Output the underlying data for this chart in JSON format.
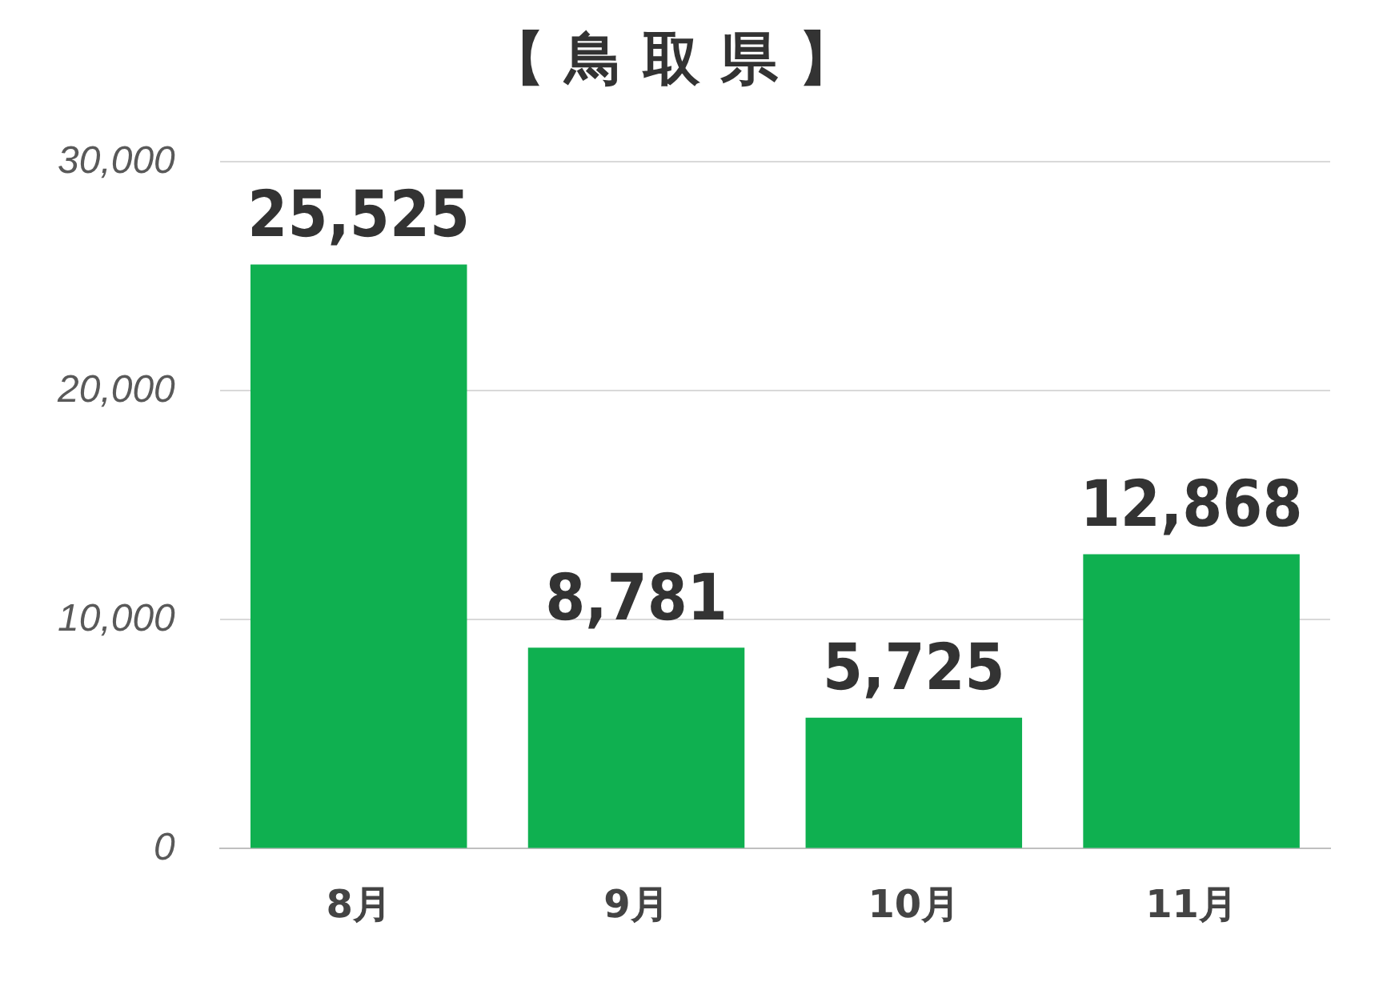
{
  "chart_data": {
    "type": "bar",
    "title": "【 鳥 取 県 】",
    "categories": [
      "8月",
      "9月",
      "10月",
      "11月"
    ],
    "values": [
      25525,
      8781,
      5725,
      12868
    ],
    "color": "#0fb050",
    "ylim": [
      0,
      30000
    ],
    "yticks": [
      0,
      {
        "value": 10000,
        "label": "10,000"
      },
      {
        "value": 20000,
        "label": "20,000"
      },
      {
        "value": 30000,
        "label": "30,000"
      }
    ],
    "value_labels": [
      "25,525",
      "8,781",
      "5,725",
      "12,868"
    ],
    "grid": "y",
    "legend": false
  }
}
